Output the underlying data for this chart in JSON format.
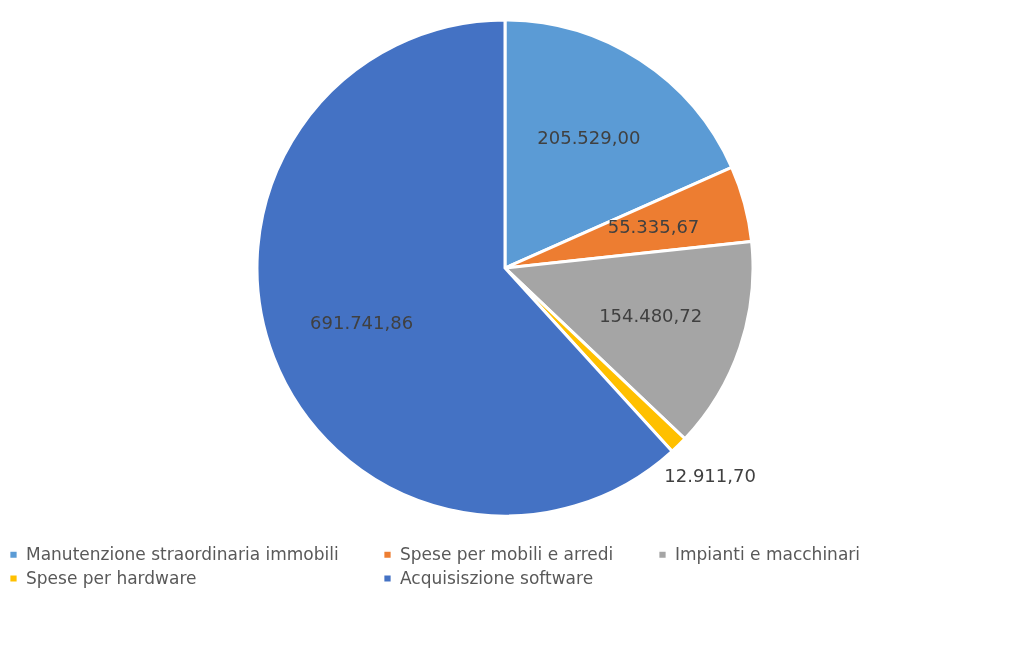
{
  "chart_data": {
    "type": "pie",
    "categories": [
      "Manutenzione straordinaria immobili",
      "Spese per mobili e arredi",
      "Impianti e macchinari",
      "Spese per hardware",
      "Acquisiszione software"
    ],
    "values": [
      205529.0,
      55335.67,
      154480.72,
      12911.7,
      691741.86
    ],
    "value_labels": [
      "205.529,00",
      "55.335,67",
      "154.480,72",
      "12.911,70",
      "691.741,86"
    ],
    "colors": [
      "#5b9bd5",
      "#ed7d31",
      "#a5a5a5",
      "#ffc000",
      "#4472c4"
    ],
    "legend": "bottom"
  }
}
